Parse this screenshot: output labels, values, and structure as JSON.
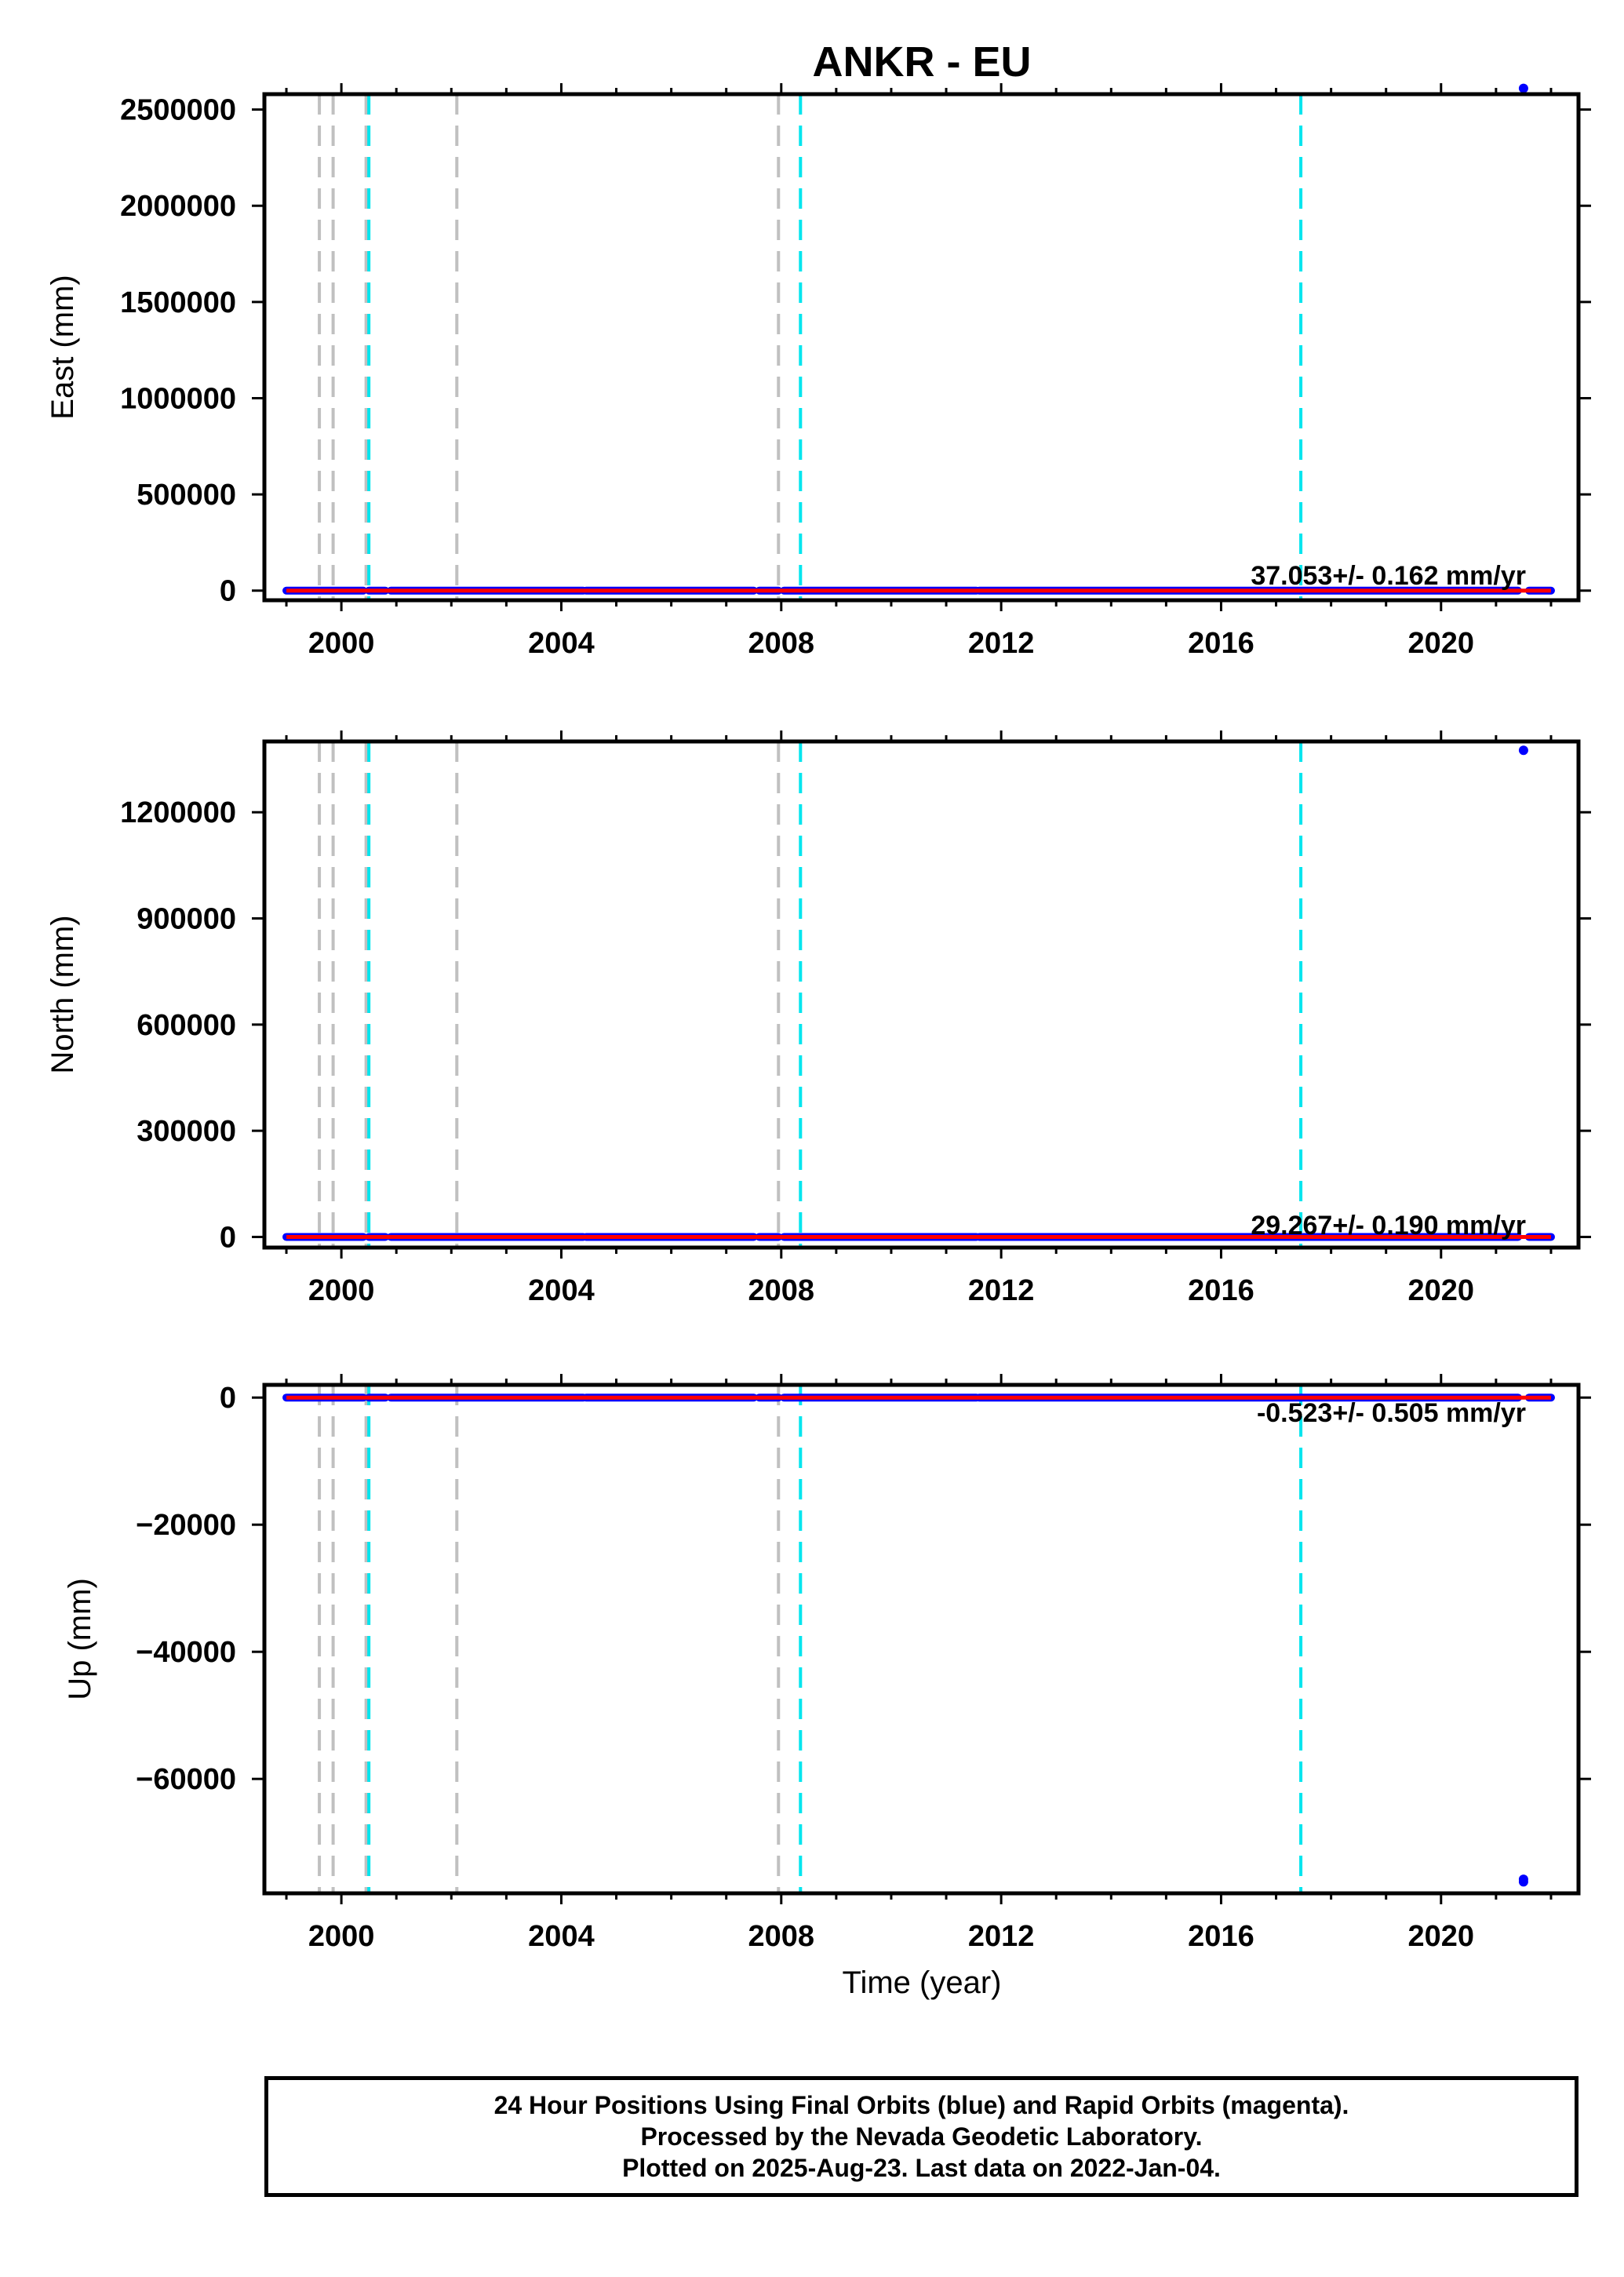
{
  "title": "ANKR - EU",
  "xlabel": "Time (year)",
  "footer": {
    "line1": "24 Hour Positions Using Final Orbits (blue) and Rapid Orbits (magenta).",
    "line2": "Processed by the Nevada Geodetic Laboratory.",
    "line3": "Plotted on 2025-Aug-23. Last data on 2022-Jan-04."
  },
  "colors": {
    "final_orbits": "#0000ff",
    "rapid_orbits": "#ff00ff",
    "fit_line": "#ff0000",
    "equipment_change": "#00e5ee",
    "earthquake": "#c0c0c0"
  },
  "chart_data": [
    {
      "type": "scatter",
      "ylabel": "East (mm)",
      "rate_text": "37.053+/- 0.162 mm/yr",
      "xlim": [
        1998.6,
        2022.5
      ],
      "ylim": [
        -50000,
        2580000
      ],
      "x_ticks": [
        2000,
        2004,
        2008,
        2012,
        2016,
        2020
      ],
      "x_tick_labels": [
        "2000",
        "2004",
        "2008",
        "2012",
        "2016",
        "2020"
      ],
      "y_ticks": [
        0,
        500000,
        1000000,
        1500000,
        2000000,
        2500000
      ],
      "y_tick_labels": [
        "0",
        "500000",
        "1000000",
        "1500000",
        "2000000",
        "2500000"
      ],
      "segments": [
        [
          1999.0,
          2000.4
        ],
        [
          2000.5,
          2000.8
        ],
        [
          2000.9,
          2004.4
        ],
        [
          2004.45,
          2007.5
        ],
        [
          2007.6,
          2007.95
        ],
        [
          2008.05,
          2011.55
        ],
        [
          2011.6,
          2021.4
        ],
        [
          2021.6,
          2022.0
        ]
      ],
      "outliers": [
        {
          "x": 2021.5,
          "y": 2610000
        }
      ],
      "dashed_gray": [
        1999.6,
        1999.85,
        2000.45,
        2002.1,
        2007.95
      ],
      "dashed_cyan": [
        2000.5,
        2008.35,
        2017.45
      ]
    },
    {
      "type": "scatter",
      "ylabel": "North (mm)",
      "rate_text": "29.267+/- 0.190 mm/yr",
      "xlim": [
        1998.6,
        2022.5
      ],
      "ylim": [
        -30000,
        1400000
      ],
      "x_ticks": [
        2000,
        2004,
        2008,
        2012,
        2016,
        2020
      ],
      "x_tick_labels": [
        "2000",
        "2004",
        "2008",
        "2012",
        "2016",
        "2020"
      ],
      "y_ticks": [
        0,
        300000,
        600000,
        900000,
        1200000
      ],
      "y_tick_labels": [
        "0",
        "300000",
        "600000",
        "900000",
        "1200000"
      ],
      "segments": [
        [
          1999.0,
          2000.4
        ],
        [
          2000.5,
          2000.8
        ],
        [
          2000.9,
          2004.4
        ],
        [
          2004.45,
          2007.5
        ],
        [
          2007.6,
          2007.95
        ],
        [
          2008.05,
          2011.55
        ],
        [
          2011.6,
          2021.4
        ],
        [
          2021.6,
          2022.0
        ]
      ],
      "outliers": [
        {
          "x": 2021.5,
          "y": 1375000
        }
      ],
      "dashed_gray": [
        1999.6,
        1999.85,
        2000.45,
        2002.1,
        2007.95
      ],
      "dashed_cyan": [
        2000.5,
        2008.35,
        2017.45
      ]
    },
    {
      "type": "scatter",
      "ylabel": "Up (mm)",
      "rate_text": "-0.523+/- 0.505 mm/yr",
      "xlim": [
        1998.6,
        2022.5
      ],
      "ylim": [
        -78000,
        2000
      ],
      "x_ticks": [
        2000,
        2004,
        2008,
        2012,
        2016,
        2020
      ],
      "x_tick_labels": [
        "2000",
        "2004",
        "2008",
        "2012",
        "2016",
        "2020"
      ],
      "y_ticks": [
        0,
        -20000,
        -40000,
        -60000
      ],
      "y_tick_labels": [
        "0",
        "−20000",
        "−40000",
        "−60000"
      ],
      "segments": [
        [
          1999.0,
          2000.4
        ],
        [
          2000.5,
          2000.8
        ],
        [
          2000.9,
          2004.4
        ],
        [
          2004.45,
          2007.5
        ],
        [
          2007.6,
          2007.95
        ],
        [
          2008.05,
          2011.55
        ],
        [
          2011.6,
          2021.4
        ],
        [
          2021.6,
          2022.0
        ]
      ],
      "outliers": [
        {
          "x": 2021.5,
          "y": -75800
        },
        {
          "x": 2021.5,
          "y": -76200
        }
      ],
      "dashed_gray": [
        1999.6,
        1999.85,
        2000.45,
        2002.1,
        2007.95
      ],
      "dashed_cyan": [
        2000.5,
        2008.35,
        2017.45
      ]
    }
  ]
}
